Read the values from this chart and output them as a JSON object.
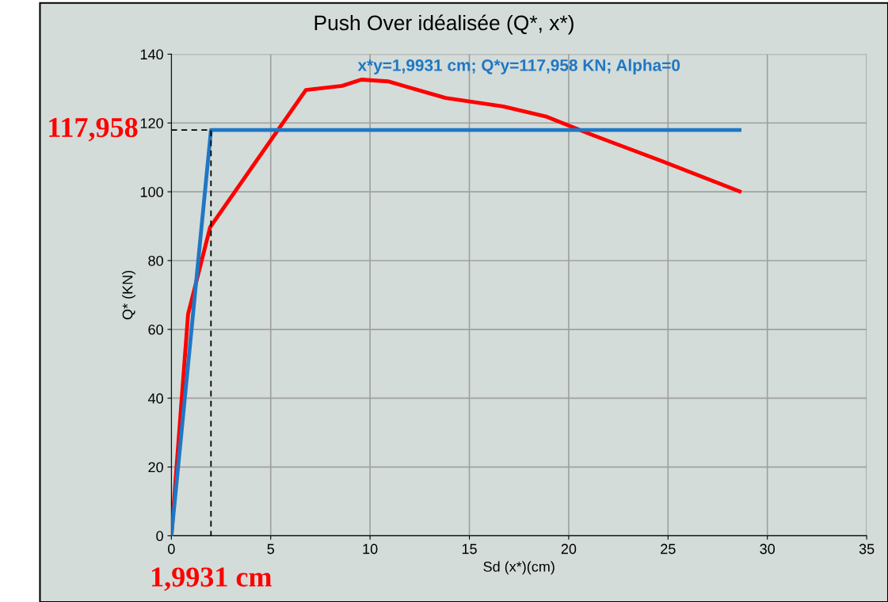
{
  "chart_data": {
    "type": "line",
    "title": "Push Over idéalisée (Q*, x*)",
    "subtitle": "x*y=1,9931 cm; Q*y=117,958 KN; Alpha=0",
    "xlabel": "Sd (x*)(cm)",
    "ylabel": "Q* (KN)",
    "series": [
      {
        "color": "#ff0000",
        "x": [
          0,
          0.84,
          1.95,
          6.77,
          8.6,
          9.56,
          10.9,
          13.8,
          16.7,
          18.9,
          21.1,
          24.7,
          28.6
        ],
        "values": [
          0,
          64.4,
          89.7,
          129.6,
          130.8,
          132.6,
          132.1,
          127.3,
          124.8,
          121.8,
          116.7,
          108.9,
          100.1
        ]
      },
      {
        "color": "#1f77c4",
        "x": [
          0,
          1.9931,
          28.6
        ],
        "values": [
          0,
          117.958,
          117.958
        ]
      },
      {
        "color": "#000000",
        "line_style": "dashed",
        "x": [
          0,
          1.9931,
          1.9931
        ],
        "values": [
          117.958,
          117.958,
          0
        ]
      }
    ],
    "annotations": [
      {
        "text": "117,958",
        "x": 0,
        "y": 117.958
      },
      {
        "text": "1,9931 cm",
        "x": 1.9931,
        "y": 0
      }
    ],
    "xlim": [
      0,
      35
    ],
    "xticks": [
      0,
      5,
      10,
      15,
      20,
      25,
      30,
      35
    ],
    "ylim": [
      0,
      140
    ],
    "yticks": [
      0,
      20,
      40,
      60,
      80,
      100,
      120,
      140
    ],
    "grid": true,
    "legend": false
  }
}
